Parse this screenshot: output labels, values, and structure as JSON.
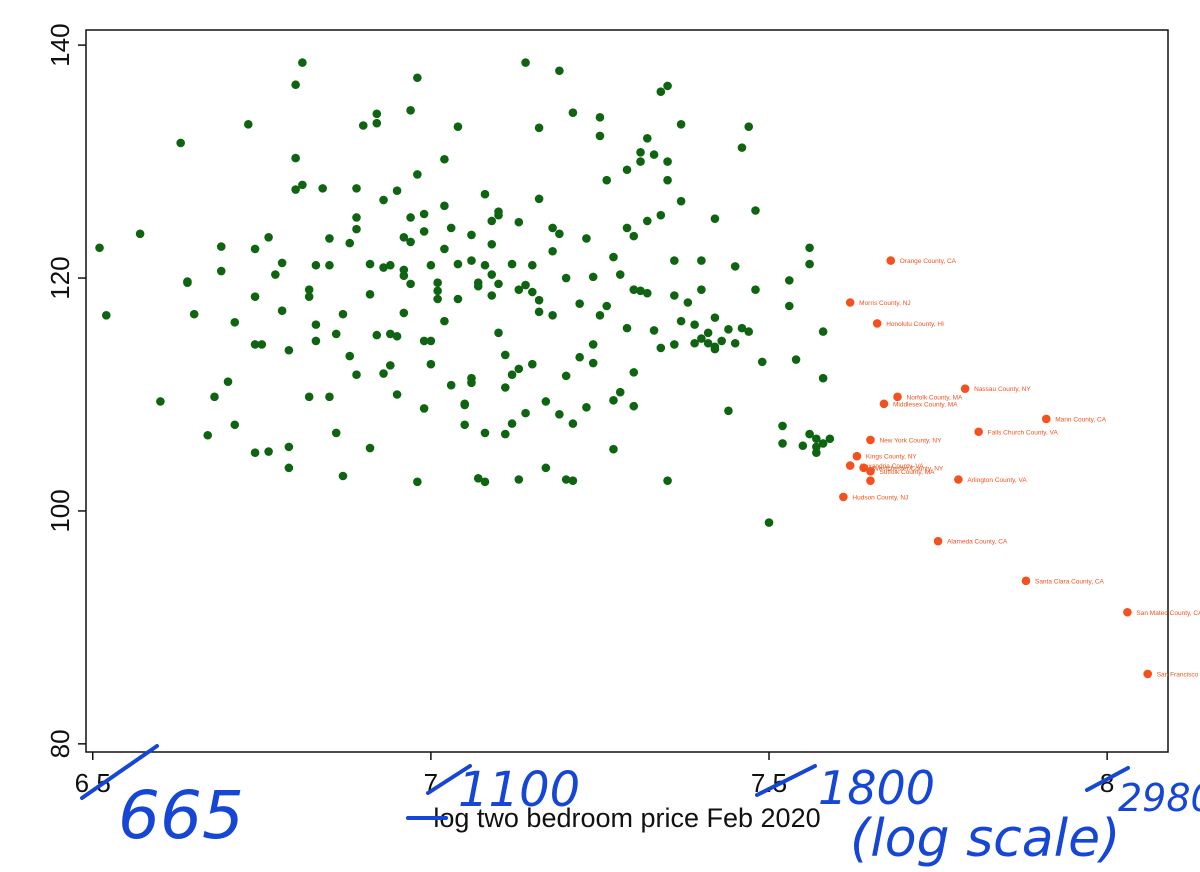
{
  "chart_data": {
    "type": "scatter",
    "xlabel": "log two bedroom price Feb 2020",
    "ylabel": "",
    "xlim": [
      6.49,
      8.09
    ],
    "ylim": [
      79.3,
      141.3
    ],
    "x_ticks": [
      6.5,
      7,
      7.5,
      8
    ],
    "x_tick_labels": [
      "6.5",
      "7",
      "7.5",
      "8"
    ],
    "y_ticks": [
      80,
      100,
      120,
      140
    ],
    "y_tick_labels": [
      "80",
      "100",
      "120",
      "140"
    ],
    "grid": false,
    "legend": "none",
    "colors": {
      "green": "#0e6410",
      "orange": "#f4511e",
      "ink": "#1646d6"
    },
    "series": [
      {
        "color": "#0e6410",
        "points": [
          [
            6.51,
            122.6
          ],
          [
            6.52,
            116.8
          ],
          [
            6.57,
            123.8
          ],
          [
            6.6,
            109.4
          ],
          [
            6.63,
            131.6
          ],
          [
            6.64,
            119.6
          ],
          [
            6.64,
            119.7
          ],
          [
            6.65,
            116.9
          ],
          [
            6.67,
            106.5
          ],
          [
            6.68,
            109.8
          ],
          [
            6.69,
            122.7
          ],
          [
            6.69,
            120.6
          ],
          [
            6.7,
            111.1
          ],
          [
            6.71,
            116.2
          ],
          [
            6.71,
            107.4
          ],
          [
            6.73,
            133.2
          ],
          [
            6.74,
            122.5
          ],
          [
            6.74,
            118.4
          ],
          [
            6.74,
            114.3
          ],
          [
            6.74,
            105.0
          ],
          [
            6.75,
            114.3
          ],
          [
            6.76,
            123.5
          ],
          [
            6.77,
            120.3
          ],
          [
            6.78,
            121.3
          ],
          [
            6.78,
            117.2
          ],
          [
            6.79,
            113.8
          ],
          [
            6.79,
            103.7
          ],
          [
            6.8,
            136.6
          ],
          [
            6.8,
            127.6
          ],
          [
            6.8,
            130.3
          ],
          [
            6.81,
            138.5
          ],
          [
            6.81,
            128.0
          ],
          [
            6.82,
            119.0
          ],
          [
            6.82,
            118.4
          ],
          [
            6.82,
            109.8
          ],
          [
            6.83,
            114.6
          ],
          [
            6.83,
            121.1
          ],
          [
            6.84,
            127.7
          ],
          [
            6.85,
            123.4
          ],
          [
            6.85,
            109.8
          ],
          [
            6.86,
            115.2
          ],
          [
            6.86,
            106.7
          ],
          [
            6.87,
            116.9
          ],
          [
            6.88,
            123.0
          ],
          [
            6.88,
            113.3
          ],
          [
            6.89,
            125.2
          ],
          [
            6.89,
            124.2
          ],
          [
            6.89,
            127.7
          ],
          [
            6.89,
            111.7
          ],
          [
            6.9,
            133.1
          ],
          [
            6.91,
            118.6
          ],
          [
            6.91,
            105.4
          ],
          [
            6.92,
            134.1
          ],
          [
            6.92,
            133.3
          ],
          [
            6.92,
            115.1
          ],
          [
            6.93,
            126.7
          ],
          [
            6.93,
            111.8
          ],
          [
            6.94,
            115.2
          ],
          [
            6.94,
            112.5
          ],
          [
            6.95,
            127.5
          ],
          [
            6.95,
            115.0
          ],
          [
            6.95,
            110.0
          ],
          [
            6.96,
            123.5
          ],
          [
            6.96,
            120.7
          ],
          [
            6.96,
            120.2
          ],
          [
            6.96,
            117.0
          ],
          [
            6.97,
            134.4
          ],
          [
            6.97,
            125.2
          ],
          [
            6.97,
            119.5
          ],
          [
            6.98,
            137.2
          ],
          [
            6.98,
            128.9
          ],
          [
            6.99,
            108.8
          ],
          [
            6.99,
            125.5
          ],
          [
            6.99,
            114.6
          ],
          [
            7.0,
            114.6
          ],
          [
            7.0,
            112.6
          ],
          [
            7.01,
            118.9
          ],
          [
            7.01,
            119.6
          ],
          [
            7.01,
            118.2
          ],
          [
            7.02,
            130.2
          ],
          [
            7.02,
            126.2
          ],
          [
            7.02,
            122.5
          ],
          [
            7.02,
            116.3
          ],
          [
            7.03,
            124.3
          ],
          [
            7.03,
            110.8
          ],
          [
            7.04,
            133.0
          ],
          [
            7.04,
            118.2
          ],
          [
            7.05,
            107.4
          ],
          [
            7.05,
            109.1
          ],
          [
            7.05,
            109.2
          ],
          [
            7.06,
            111.4
          ],
          [
            7.06,
            111.0
          ],
          [
            7.06,
            121.5
          ],
          [
            7.07,
            119.6
          ],
          [
            7.07,
            119.3
          ],
          [
            7.08,
            127.2
          ],
          [
            7.08,
            106.7
          ],
          [
            7.08,
            102.5
          ],
          [
            7.09,
            124.9
          ],
          [
            7.09,
            120.3
          ],
          [
            7.09,
            122.9
          ],
          [
            7.1,
            125.7
          ],
          [
            7.1,
            125.4
          ],
          [
            7.1,
            115.3
          ],
          [
            7.11,
            110.6
          ],
          [
            7.11,
            113.4
          ],
          [
            7.12,
            111.7
          ],
          [
            7.12,
            107.5
          ],
          [
            7.13,
            102.7
          ],
          [
            7.13,
            112.2
          ],
          [
            7.14,
            138.5
          ],
          [
            7.14,
            119.4
          ],
          [
            7.15,
            118.8
          ],
          [
            7.15,
            112.6
          ],
          [
            7.16,
            132.9
          ],
          [
            7.16,
            126.8
          ],
          [
            7.16,
            117.1
          ],
          [
            7.17,
            109.4
          ],
          [
            7.17,
            103.7
          ],
          [
            7.18,
            124.3
          ],
          [
            7.18,
            116.8
          ],
          [
            7.19,
            137.8
          ],
          [
            7.19,
            123.8
          ],
          [
            7.2,
            120.0
          ],
          [
            7.2,
            111.6
          ],
          [
            7.21,
            134.2
          ],
          [
            7.21,
            107.5
          ],
          [
            7.22,
            113.2
          ],
          [
            7.23,
            123.4
          ],
          [
            7.24,
            120.1
          ],
          [
            7.24,
            114.3
          ],
          [
            7.25,
            132.2
          ],
          [
            7.25,
            133.8
          ],
          [
            7.26,
            128.4
          ],
          [
            7.26,
            117.6
          ],
          [
            7.27,
            109.5
          ],
          [
            7.27,
            121.8
          ],
          [
            7.28,
            120.3
          ],
          [
            7.29,
            124.3
          ],
          [
            7.29,
            115.7
          ],
          [
            7.3,
            123.6
          ],
          [
            7.3,
            109.0
          ],
          [
            7.3,
            111.9
          ],
          [
            7.31,
            118.9
          ],
          [
            7.32,
            132.0
          ],
          [
            7.32,
            124.9
          ],
          [
            7.33,
            115.5
          ],
          [
            7.34,
            136.0
          ],
          [
            7.34,
            125.4
          ],
          [
            7.34,
            114.0
          ],
          [
            7.35,
            102.6
          ],
          [
            7.35,
            128.4
          ],
          [
            7.36,
            121.5
          ],
          [
            7.36,
            118.5
          ],
          [
            7.37,
            133.2
          ],
          [
            7.37,
            126.6
          ],
          [
            7.38,
            117.9
          ],
          [
            7.39,
            116.0
          ],
          [
            7.4,
            121.5
          ],
          [
            7.4,
            119.0
          ],
          [
            7.41,
            115.3
          ],
          [
            7.42,
            125.1
          ],
          [
            7.42,
            116.6
          ],
          [
            7.43,
            114.6
          ],
          [
            7.44,
            108.6
          ],
          [
            7.45,
            121.0
          ],
          [
            7.46,
            131.2
          ],
          [
            7.47,
            133.0
          ],
          [
            7.48,
            119.0
          ],
          [
            7.49,
            112.8
          ],
          [
            7.5,
            99.0
          ],
          [
            7.31,
            130.8
          ],
          [
            7.31,
            130.0
          ],
          [
            7.3,
            119.0
          ],
          [
            7.32,
            118.7
          ],
          [
            7.28,
            110.2
          ],
          [
            7.27,
            105.3
          ],
          [
            7.21,
            102.6
          ],
          [
            7.2,
            102.7
          ],
          [
            7.24,
            112.7
          ],
          [
            7.23,
            108.9
          ],
          [
            7.19,
            108.3
          ],
          [
            7.14,
            108.4
          ],
          [
            7.11,
            106.6
          ],
          [
            7.07,
            102.8
          ],
          [
            6.98,
            102.5
          ],
          [
            6.87,
            103.0
          ],
          [
            6.79,
            105.5
          ],
          [
            6.76,
            105.1
          ],
          [
            6.85,
            121.1
          ],
          [
            6.83,
            116.0
          ],
          [
            6.91,
            121.2
          ],
          [
            6.94,
            121.1
          ],
          [
            7.0,
            121.1
          ],
          [
            7.04,
            121.2
          ],
          [
            7.08,
            121.1
          ],
          [
            7.12,
            121.2
          ],
          [
            7.15,
            121.1
          ],
          [
            7.35,
            136.5
          ],
          [
            7.35,
            130.0
          ],
          [
            7.33,
            130.6
          ],
          [
            7.29,
            129.3
          ],
          [
            7.36,
            114.3
          ],
          [
            7.37,
            116.3
          ],
          [
            7.39,
            114.4
          ],
          [
            7.4,
            114.8
          ],
          [
            7.42,
            113.9
          ],
          [
            7.44,
            115.6
          ],
          [
            7.46,
            115.7
          ],
          [
            7.47,
            115.4
          ],
          [
            7.48,
            125.8
          ],
          [
            7.52,
            107.3
          ],
          [
            7.52,
            105.8
          ],
          [
            7.53,
            119.8
          ],
          [
            7.53,
            117.6
          ],
          [
            7.54,
            113.0
          ],
          [
            7.56,
            122.6
          ],
          [
            7.56,
            121.2
          ],
          [
            7.56,
            106.6
          ],
          [
            7.57,
            105.5
          ],
          [
            7.57,
            105.0
          ],
          [
            7.58,
            115.4
          ],
          [
            7.58,
            111.4
          ],
          [
            7.59,
            106.2
          ],
          [
            7.55,
            105.6
          ],
          [
            7.58,
            105.8
          ],
          [
            7.57,
            106.2
          ],
          [
            7.41,
            114.4
          ],
          [
            7.42,
            114.1
          ],
          [
            7.45,
            114.4
          ],
          [
            6.93,
            120.9
          ],
          [
            6.97,
            123.1
          ],
          [
            6.99,
            124.0
          ],
          [
            7.06,
            123.7
          ],
          [
            7.13,
            124.8
          ],
          [
            7.18,
            122.3
          ],
          [
            7.09,
            118.5
          ],
          [
            7.1,
            119.5
          ],
          [
            7.13,
            119.0
          ],
          [
            7.16,
            118.1
          ],
          [
            7.22,
            117.8
          ],
          [
            7.25,
            116.8
          ]
        ]
      },
      {
        "color": "#f4511e",
        "points": [
          [
            7.68,
            121.5
          ],
          [
            7.62,
            117.9
          ],
          [
            7.66,
            116.1
          ],
          [
            7.79,
            110.5
          ],
          [
            7.69,
            109.8
          ],
          [
            7.67,
            109.2
          ],
          [
            7.91,
            107.9
          ],
          [
            7.81,
            106.8
          ],
          [
            7.65,
            106.1
          ],
          [
            7.63,
            104.7
          ],
          [
            7.62,
            103.9
          ],
          [
            7.64,
            103.7
          ],
          [
            7.65,
            103.4
          ],
          [
            7.65,
            102.6
          ],
          [
            7.78,
            102.7
          ],
          [
            7.61,
            101.2
          ],
          [
            7.75,
            97.4
          ],
          [
            7.88,
            94.0
          ],
          [
            8.03,
            91.3
          ],
          [
            8.06,
            86.0
          ]
        ],
        "point_labels": [
          "Orange County, CA",
          "Morris County, NJ",
          "Honolulu County, HI",
          "Nassau County, NY",
          "Norfolk County, MA",
          "Middlesex County, MA",
          "Marin County, CA",
          "Falls Church County, VA",
          "New York County, NY",
          "Kings County, NY",
          "Alexandria County, VA",
          "Westchester County, NY",
          "Suffolk County, MA",
          "",
          "Arlington County, VA",
          "Hudson County, NJ",
          "Alameda County, CA",
          "Santa Clara County, CA",
          "San Mateo County, CA",
          "San Francisco County, CA"
        ]
      }
    ],
    "annotations": [
      "665",
      "1100",
      "1800",
      "2980",
      "(log scale)"
    ]
  }
}
